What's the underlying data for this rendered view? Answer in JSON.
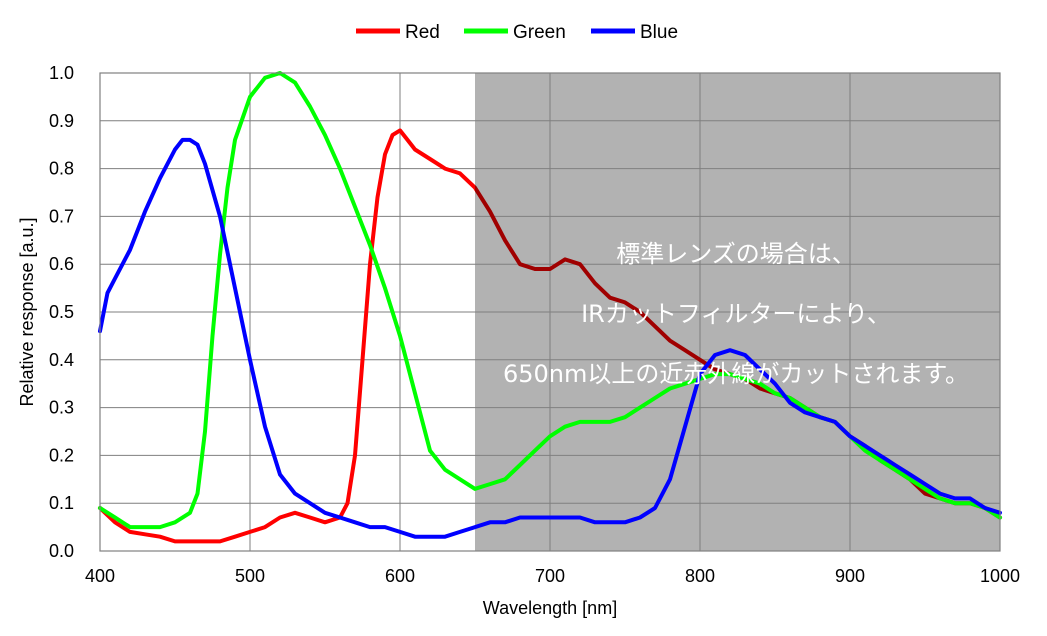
{
  "chart_data": {
    "type": "line",
    "xlabel": "Wavelength [nm]",
    "ylabel": "Relative response [a.u.]",
    "xlim": [
      400,
      1000
    ],
    "ylim": [
      0.0,
      1.0
    ],
    "xticks": [
      "400",
      "500",
      "600",
      "700",
      "800",
      "900",
      "1000"
    ],
    "yticks": [
      "0.0",
      "0.1",
      "0.2",
      "0.3",
      "0.4",
      "0.5",
      "0.6",
      "0.7",
      "0.8",
      "0.9",
      "1.0"
    ],
    "grid": true,
    "legend_position": "top-center",
    "shaded_region": {
      "x_start": 650,
      "x_end": 1000,
      "color": "#b2b2b2"
    },
    "annotation_lines": [
      "標準レンズの場合は、",
      "IRカットフィルターにより、",
      "650nm以上の近赤外線がカットされます。"
    ],
    "series": [
      {
        "name": "Red",
        "color": "#ff0000",
        "shaded_color": "#a00000",
        "x": [
          400,
          410,
          420,
          430,
          440,
          450,
          460,
          470,
          480,
          490,
          500,
          510,
          520,
          530,
          540,
          550,
          560,
          565,
          570,
          575,
          580,
          585,
          590,
          595,
          600,
          605,
          610,
          620,
          630,
          640,
          650,
          660,
          670,
          680,
          690,
          700,
          710,
          720,
          730,
          740,
          750,
          760,
          770,
          780,
          790,
          800,
          810,
          820,
          830,
          840,
          850,
          860,
          870,
          880,
          890,
          900,
          910,
          920,
          930,
          940,
          950,
          960,
          970,
          980,
          990,
          1000
        ],
        "y": [
          0.09,
          0.06,
          0.04,
          0.035,
          0.03,
          0.02,
          0.02,
          0.02,
          0.02,
          0.03,
          0.04,
          0.05,
          0.07,
          0.08,
          0.07,
          0.06,
          0.07,
          0.1,
          0.2,
          0.4,
          0.6,
          0.74,
          0.83,
          0.87,
          0.88,
          0.86,
          0.84,
          0.82,
          0.8,
          0.79,
          0.76,
          0.71,
          0.65,
          0.6,
          0.59,
          0.59,
          0.61,
          0.6,
          0.56,
          0.53,
          0.52,
          0.5,
          0.47,
          0.44,
          0.42,
          0.4,
          0.38,
          0.37,
          0.36,
          0.34,
          0.33,
          0.32,
          0.3,
          0.28,
          0.27,
          0.24,
          0.22,
          0.19,
          0.17,
          0.15,
          0.12,
          0.11,
          0.1,
          0.1,
          0.09,
          0.07
        ]
      },
      {
        "name": "Green",
        "color": "#00ff00",
        "x": [
          400,
          410,
          420,
          430,
          440,
          450,
          460,
          465,
          470,
          475,
          480,
          485,
          490,
          500,
          510,
          520,
          530,
          540,
          550,
          560,
          570,
          580,
          590,
          600,
          610,
          620,
          630,
          640,
          650,
          660,
          670,
          680,
          690,
          700,
          710,
          720,
          730,
          740,
          750,
          760,
          770,
          780,
          790,
          800,
          810,
          820,
          830,
          840,
          850,
          860,
          870,
          880,
          890,
          900,
          910,
          920,
          930,
          940,
          950,
          960,
          970,
          980,
          990,
          1000
        ],
        "y": [
          0.09,
          0.07,
          0.05,
          0.05,
          0.05,
          0.06,
          0.08,
          0.12,
          0.25,
          0.45,
          0.62,
          0.76,
          0.86,
          0.95,
          0.99,
          1.0,
          0.98,
          0.93,
          0.87,
          0.8,
          0.72,
          0.64,
          0.55,
          0.45,
          0.33,
          0.21,
          0.17,
          0.15,
          0.13,
          0.14,
          0.15,
          0.18,
          0.21,
          0.24,
          0.26,
          0.27,
          0.27,
          0.27,
          0.28,
          0.3,
          0.32,
          0.34,
          0.35,
          0.36,
          0.37,
          0.37,
          0.36,
          0.35,
          0.33,
          0.32,
          0.3,
          0.28,
          0.27,
          0.24,
          0.21,
          0.19,
          0.17,
          0.15,
          0.13,
          0.11,
          0.1,
          0.1,
          0.09,
          0.07
        ]
      },
      {
        "name": "Blue",
        "color": "#0000ff",
        "x": [
          400,
          405,
          410,
          420,
          430,
          440,
          450,
          455,
          460,
          465,
          470,
          480,
          490,
          500,
          510,
          520,
          530,
          540,
          550,
          560,
          570,
          580,
          590,
          600,
          610,
          620,
          630,
          640,
          650,
          660,
          670,
          680,
          690,
          700,
          710,
          720,
          730,
          740,
          750,
          760,
          770,
          780,
          790,
          800,
          810,
          820,
          830,
          840,
          850,
          860,
          870,
          880,
          890,
          900,
          910,
          920,
          930,
          940,
          950,
          960,
          970,
          980,
          990,
          1000
        ],
        "y": [
          0.46,
          0.54,
          0.57,
          0.63,
          0.71,
          0.78,
          0.84,
          0.86,
          0.86,
          0.85,
          0.81,
          0.7,
          0.55,
          0.4,
          0.26,
          0.16,
          0.12,
          0.1,
          0.08,
          0.07,
          0.06,
          0.05,
          0.05,
          0.04,
          0.03,
          0.03,
          0.03,
          0.04,
          0.05,
          0.06,
          0.06,
          0.07,
          0.07,
          0.07,
          0.07,
          0.07,
          0.06,
          0.06,
          0.06,
          0.07,
          0.09,
          0.15,
          0.26,
          0.37,
          0.41,
          0.42,
          0.41,
          0.38,
          0.35,
          0.31,
          0.29,
          0.28,
          0.27,
          0.24,
          0.22,
          0.2,
          0.18,
          0.16,
          0.14,
          0.12,
          0.11,
          0.11,
          0.09,
          0.08
        ]
      }
    ]
  }
}
